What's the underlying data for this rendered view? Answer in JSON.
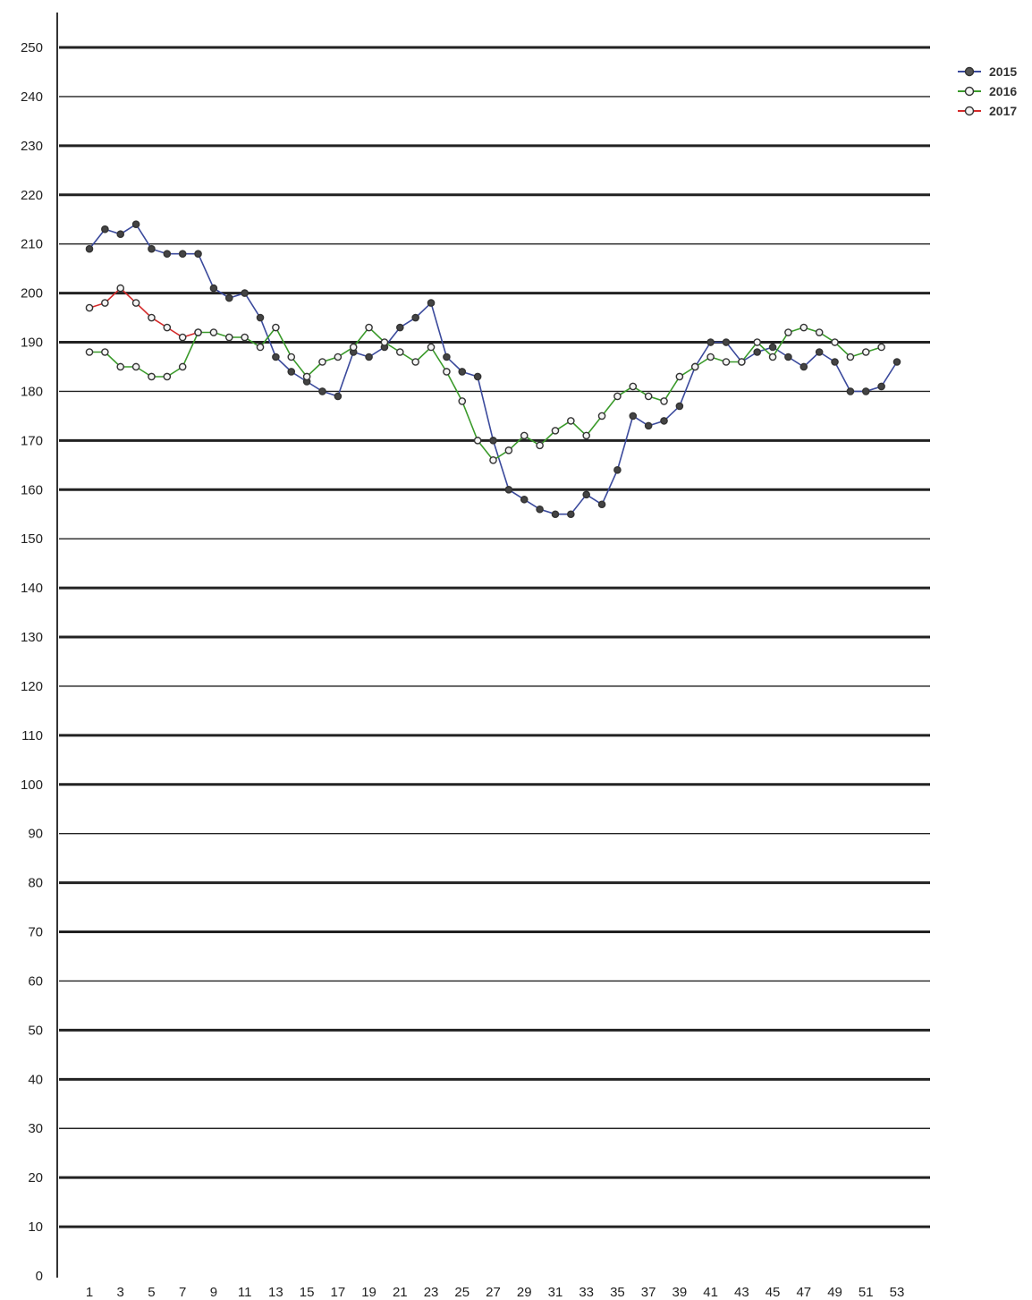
{
  "chart_data": {
    "type": "line",
    "title": "",
    "xlabel": "",
    "ylabel": "",
    "ylim": [
      0,
      250
    ],
    "xlim": [
      1,
      53
    ],
    "y_ticks": [
      0,
      10,
      20,
      30,
      40,
      50,
      60,
      70,
      80,
      90,
      100,
      110,
      120,
      130,
      140,
      150,
      160,
      170,
      180,
      190,
      200,
      210,
      220,
      230,
      240,
      250
    ],
    "x_ticks": [
      1,
      3,
      5,
      7,
      9,
      11,
      13,
      15,
      17,
      19,
      21,
      23,
      25,
      27,
      29,
      31,
      33,
      35,
      37,
      39,
      41,
      43,
      45,
      47,
      49,
      51,
      53
    ],
    "grid": true,
    "legend_position": "top-right",
    "series": [
      {
        "name": "2015",
        "color": "#3b4a9c",
        "marker": "filled-circle",
        "x": [
          1,
          2,
          3,
          4,
          5,
          6,
          7,
          8,
          9,
          10,
          11,
          12,
          13,
          14,
          15,
          16,
          17,
          18,
          19,
          20,
          21,
          22,
          23,
          24,
          25,
          26,
          27,
          28,
          29,
          30,
          31,
          32,
          33,
          34,
          35,
          36,
          37,
          38,
          39,
          40,
          41,
          42,
          43,
          44,
          45,
          46,
          47,
          48,
          49,
          50,
          51,
          52,
          53
        ],
        "values": [
          209,
          213,
          212,
          214,
          209,
          208,
          208,
          208,
          201,
          199,
          200,
          195,
          187,
          184,
          182,
          180,
          179,
          188,
          187,
          189,
          193,
          195,
          198,
          187,
          184,
          183,
          170,
          160,
          158,
          156,
          155,
          155,
          159,
          157,
          164,
          175,
          173,
          174,
          177,
          185,
          190,
          190,
          186,
          188,
          189,
          187,
          185,
          188,
          186,
          180,
          180,
          181,
          186
        ]
      },
      {
        "name": "2016",
        "color": "#3a9a2a",
        "marker": "open-circle",
        "x": [
          1,
          2,
          3,
          4,
          5,
          6,
          7,
          8,
          9,
          10,
          11,
          12,
          13,
          14,
          15,
          16,
          17,
          18,
          19,
          20,
          21,
          22,
          23,
          24,
          25,
          26,
          27,
          28,
          29,
          30,
          31,
          32,
          33,
          34,
          35,
          36,
          37,
          38,
          39,
          40,
          41,
          42,
          43,
          44,
          45,
          46,
          47,
          48,
          49,
          50,
          51,
          52
        ],
        "values": [
          188,
          188,
          185,
          185,
          183,
          183,
          185,
          192,
          192,
          191,
          191,
          189,
          193,
          187,
          183,
          186,
          187,
          189,
          193,
          190,
          188,
          186,
          189,
          184,
          178,
          170,
          166,
          168,
          171,
          169,
          172,
          174,
          171,
          175,
          179,
          181,
          179,
          178,
          183,
          185,
          187,
          186,
          186,
          190,
          187,
          192,
          193,
          192,
          190,
          187,
          188,
          189
        ]
      },
      {
        "name": "2017",
        "color": "#d42a2a",
        "marker": "open-circle",
        "x": [
          1,
          2,
          3,
          4,
          5,
          6,
          7,
          8
        ],
        "values": [
          197,
          198,
          201,
          198,
          195,
          193,
          191,
          192
        ]
      }
    ]
  }
}
